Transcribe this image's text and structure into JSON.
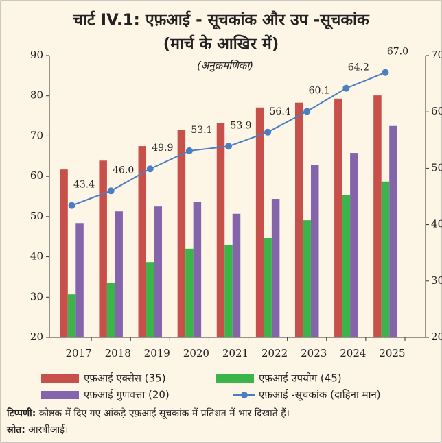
{
  "chart_data": {
    "type": "bar_line",
    "title_lines": [
      "चार्ट IV.1: एफ़आई - सूचकांक  और उप -सूचकांक",
      "(मार्च के आखिर में)"
    ],
    "subtitle": "(अनुक्रमणिका)",
    "categories": [
      "2017",
      "2018",
      "2019",
      "2020",
      "2021",
      "2022",
      "2023",
      "2024",
      "2025"
    ],
    "series": [
      {
        "name": "एफ़आई एक्सेस (35)",
        "color": "#c8504a",
        "values": [
          61.7,
          63.9,
          67.5,
          71.6,
          73.3,
          77.1,
          78.3,
          79.3,
          80.1
        ]
      },
      {
        "name": "एफ़आई उपयोग (45)",
        "color": "#3bb54a",
        "values": [
          30.7,
          33.6,
          38.7,
          42.0,
          43.0,
          44.7,
          49.1,
          55.4,
          58.7
        ]
      },
      {
        "name": "एफ़आई गुणवत्ता (20)",
        "color": "#8465ab",
        "values": [
          48.4,
          51.3,
          52.5,
          53.7,
          50.7,
          54.4,
          62.8,
          65.8,
          72.5
        ]
      },
      {
        "name": "एफ़आई -सूचकांक (दाहिना मान)",
        "color": "#4a7fc1",
        "axis": "y2",
        "type": "line",
        "values": [
          43.4,
          46.0,
          49.9,
          53.1,
          53.9,
          56.4,
          60.1,
          64.2,
          67.0
        ],
        "value_labels": [
          "43.4",
          "46.0",
          "49.9",
          "53.1",
          "53.9",
          "56.4",
          "60.1",
          "64.2",
          "67.0"
        ]
      }
    ],
    "ylim": [
      20,
      90
    ],
    "yticks": [
      20,
      30,
      40,
      50,
      60,
      70,
      80,
      90
    ],
    "y2lim": [
      20,
      70
    ],
    "y2ticks": [
      20,
      30,
      40,
      50,
      60,
      70
    ],
    "note_label": "टिप्पणी:",
    "note": "कोष्ठक में दिए गए आंकड़े एफ़आई सूचकांक में प्रतिशत में भार दिखाते हैं।",
    "source_label": "स्रोत:",
    "source": "आरबीआई।"
  }
}
